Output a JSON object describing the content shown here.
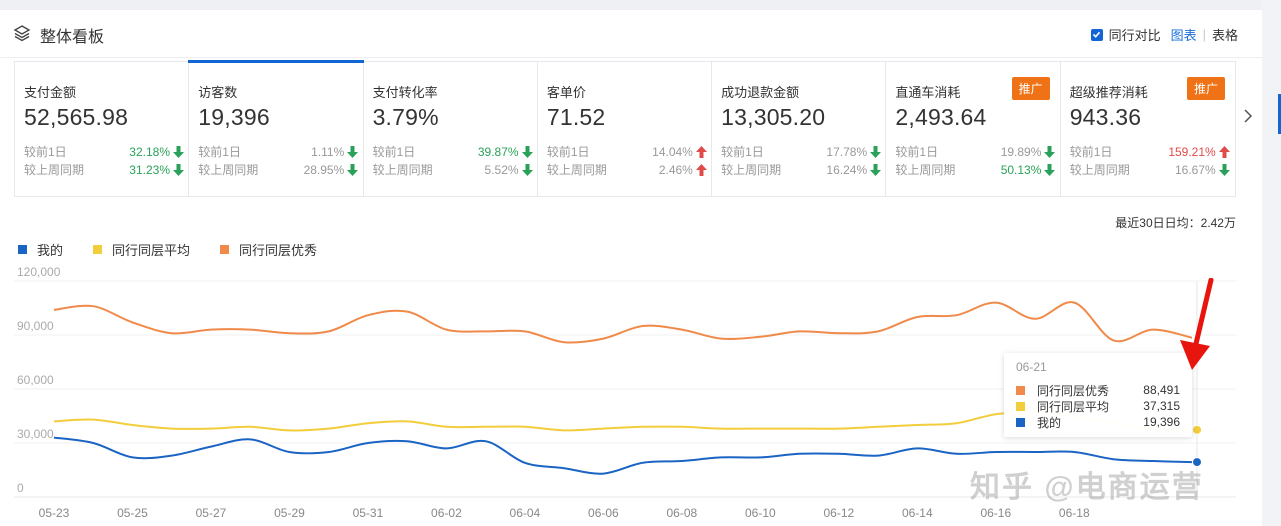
{
  "header": {
    "title": "整体看板",
    "icon": "layers-icon",
    "compare_label": "同行对比",
    "compare_checked": true,
    "view_chart": "图表",
    "view_separator": "|",
    "view_table": "表格"
  },
  "metrics": [
    {
      "label": "支付金额",
      "value": "52,565.98",
      "active": false,
      "badge": null,
      "rows": [
        {
          "label": "较前1日",
          "pct": "32.18%",
          "pct_color": "green",
          "dir": "down"
        },
        {
          "label": "较上周同期",
          "pct": "31.23%",
          "pct_color": "green",
          "dir": "down"
        }
      ]
    },
    {
      "label": "访客数",
      "value": "19,396",
      "active": true,
      "badge": null,
      "rows": [
        {
          "label": "较前1日",
          "pct": "1.11%",
          "pct_color": "gray",
          "dir": "down"
        },
        {
          "label": "较上周同期",
          "pct": "28.95%",
          "pct_color": "gray",
          "dir": "down"
        }
      ]
    },
    {
      "label": "支付转化率",
      "value": "3.79%",
      "active": false,
      "badge": null,
      "rows": [
        {
          "label": "较前1日",
          "pct": "39.87%",
          "pct_color": "green",
          "dir": "down"
        },
        {
          "label": "较上周同期",
          "pct": "5.52%",
          "pct_color": "gray",
          "dir": "down"
        }
      ]
    },
    {
      "label": "客单价",
      "value": "71.52",
      "active": false,
      "badge": null,
      "rows": [
        {
          "label": "较前1日",
          "pct": "14.04%",
          "pct_color": "gray",
          "dir": "up"
        },
        {
          "label": "较上周同期",
          "pct": "2.46%",
          "pct_color": "gray",
          "dir": "up"
        }
      ]
    },
    {
      "label": "成功退款金额",
      "value": "13,305.20",
      "active": false,
      "badge": null,
      "rows": [
        {
          "label": "较前1日",
          "pct": "17.78%",
          "pct_color": "gray",
          "dir": "down"
        },
        {
          "label": "较上周同期",
          "pct": "16.24%",
          "pct_color": "gray",
          "dir": "down"
        }
      ]
    },
    {
      "label": "直通车消耗",
      "value": "2,493.64",
      "active": false,
      "badge": "推广",
      "rows": [
        {
          "label": "较前1日",
          "pct": "19.89%",
          "pct_color": "gray",
          "dir": "down"
        },
        {
          "label": "较上周同期",
          "pct": "50.13%",
          "pct_color": "green",
          "dir": "down"
        }
      ]
    },
    {
      "label": "超级推荐消耗",
      "value": "943.36",
      "active": false,
      "badge": "推广",
      "rows": [
        {
          "label": "较前1日",
          "pct": "159.21%",
          "pct_color": "red",
          "dir": "up"
        },
        {
          "label": "较上周同期",
          "pct": "16.67%",
          "pct_color": "gray",
          "dir": "down"
        }
      ]
    }
  ],
  "colors": {
    "accent": "#1266d4",
    "up": "#e04a48",
    "down": "#2aa15a",
    "badge": "#ef7316",
    "series_mine": "#1a64c4",
    "series_avg": "#f2cd3c",
    "series_best": "#ef8a4a"
  },
  "avg_text": "最近30日日均：2.42万",
  "chart_data": {
    "type": "line",
    "title": "",
    "xlabel": "",
    "ylabel": "",
    "ylim": [
      0,
      120000
    ],
    "yticks": [
      0,
      30000,
      60000,
      90000,
      120000
    ],
    "ytick_labels": [
      "0",
      "30,000",
      "60,000",
      "90,000",
      "120,000"
    ],
    "grid": true,
    "legend_position": "top-left",
    "x": [
      "05-23",
      "05-24",
      "05-25",
      "05-26",
      "05-27",
      "05-28",
      "05-29",
      "05-30",
      "05-31",
      "06-01",
      "06-02",
      "06-03",
      "06-04",
      "06-05",
      "06-06",
      "06-07",
      "06-08",
      "06-09",
      "06-10",
      "06-11",
      "06-12",
      "06-13",
      "06-14",
      "06-15",
      "06-16",
      "06-17",
      "06-18",
      "06-19",
      "06-20",
      "06-21"
    ],
    "xtick_labels": [
      "05-23",
      "05-25",
      "05-27",
      "05-29",
      "05-31",
      "06-02",
      "06-04",
      "06-06",
      "06-08",
      "06-10",
      "06-12",
      "06-14",
      "06-16",
      "06-18"
    ],
    "series": [
      {
        "name": "我的",
        "key": "mine",
        "values": [
          33000,
          30000,
          22000,
          23000,
          28000,
          32000,
          25000,
          25000,
          30000,
          31000,
          27000,
          31000,
          19000,
          16000,
          13000,
          19000,
          20000,
          22000,
          22000,
          24000,
          24000,
          23000,
          27000,
          24000,
          25000,
          25000,
          25000,
          21000,
          20000,
          19396
        ]
      },
      {
        "name": "同行同层平均",
        "key": "avg",
        "values": [
          42000,
          43000,
          40000,
          38000,
          38000,
          39000,
          37000,
          38000,
          41000,
          42000,
          39000,
          39000,
          39000,
          37000,
          38000,
          39000,
          39000,
          38000,
          38000,
          38000,
          38000,
          39000,
          40000,
          41000,
          46000,
          47000,
          45000,
          41000,
          38000,
          37315
        ]
      },
      {
        "name": "同行同层优秀",
        "key": "best",
        "values": [
          104000,
          106000,
          97000,
          91000,
          93000,
          93000,
          91000,
          92000,
          101000,
          103000,
          93000,
          92000,
          92000,
          86000,
          88000,
          95000,
          93000,
          88000,
          89000,
          92000,
          91000,
          92000,
          100000,
          101000,
          108000,
          99000,
          108000,
          87000,
          93000,
          88491
        ]
      }
    ],
    "tooltip": {
      "date": "06-21",
      "rows": [
        {
          "name": "同行同层优秀",
          "value": "88,491",
          "key": "best"
        },
        {
          "name": "同行同层平均",
          "value": "37,315",
          "key": "avg"
        },
        {
          "name": "我的",
          "value": "19,396",
          "key": "mine"
        }
      ]
    }
  },
  "watermark": "知乎 @电商运营"
}
